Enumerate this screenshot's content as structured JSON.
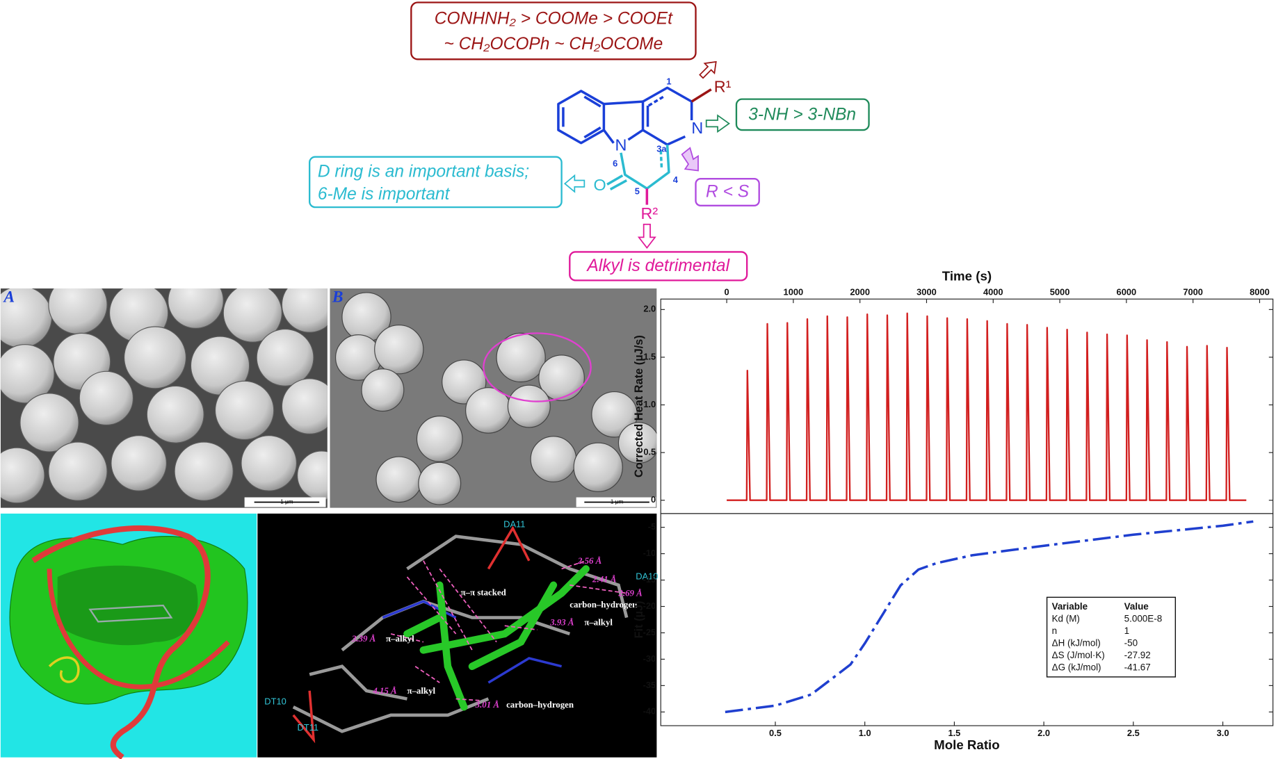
{
  "sar": {
    "r1_box": [
      "CONHNH₂ > COOMe > COOEt",
      "~ CH₂OCOPh ~ CH₂OCOMe"
    ],
    "n_box": "3-NH > 3-NBn",
    "d_box": [
      "D ring is an important basis;",
      "6-Me is important"
    ],
    "stereo_box": "R < S",
    "r2_box": "Alkyl is detrimental",
    "atoms": {
      "r1": "R¹",
      "r2": "R²",
      "n_ring": "N",
      "n_indole": "N",
      "o": "O"
    },
    "positions": {
      "p1": "1",
      "p3a": "3a",
      "p4": "4",
      "p5": "5",
      "p6": "6"
    }
  },
  "panels": {
    "a_label": "A",
    "b_label": "B",
    "scale_bar": "1 μm"
  },
  "docking": {
    "residues": [
      "DA11",
      "DA10",
      "DT10",
      "DT11"
    ],
    "interactions": [
      {
        "distance": "2.56 Å"
      },
      {
        "distance": "2.41 Å"
      },
      {
        "distance": "2.69 Å"
      },
      {
        "type": "π–π stacked"
      },
      {
        "type": "carbon–hydrogen"
      },
      {
        "distance": "3.93 Å",
        "type": "π–alkyl"
      },
      {
        "distance": "3.39 Å",
        "type": "π–alkyl"
      },
      {
        "distance": "4.15 Å",
        "type": "π–alkyl"
      },
      {
        "distance": "3.01 Å",
        "type": "carbon–hydrogen"
      }
    ]
  },
  "chart_data": [
    {
      "type": "line",
      "xlabel": "Time (s)",
      "ylabel": "Corrected Heat Rate (µJ/s)",
      "xaxis": "top",
      "color": "#d21f1f",
      "linestyle": "solid",
      "xlim": [
        -990,
        8200
      ],
      "ylim": [
        -0.14,
        2.11
      ],
      "xticks": [
        0,
        1000,
        2000,
        3000,
        4000,
        5000,
        6000,
        7000,
        8000
      ],
      "yticks": [
        0,
        0.5,
        {
          "value": 1,
          "label": "1.0"
        },
        1.5,
        {
          "value": 2,
          "label": "2.0"
        }
      ],
      "x": [
        0,
        300,
        310,
        350,
        600,
        610,
        650,
        900,
        910,
        950,
        1200,
        1210,
        1250,
        1500,
        1510,
        1550,
        1800,
        1810,
        1850,
        2100,
        2110,
        2150,
        2400,
        2410,
        2450,
        2700,
        2710,
        2750,
        3000,
        3010,
        3050,
        3300,
        3310,
        3350,
        3600,
        3610,
        3650,
        3900,
        3910,
        3950,
        4200,
        4210,
        4250,
        4500,
        4510,
        4550,
        4800,
        4810,
        4850,
        5100,
        5110,
        5150,
        5400,
        5410,
        5450,
        5700,
        5710,
        5750,
        6000,
        6010,
        6050,
        6300,
        6310,
        6350,
        6600,
        6610,
        6650,
        6900,
        6910,
        6950,
        7200,
        7210,
        7250,
        7500,
        7510,
        7550,
        7800
      ],
      "values": [
        0,
        0,
        1.36,
        0,
        0,
        1.85,
        0,
        0,
        1.86,
        0,
        0,
        1.9,
        0,
        0,
        1.93,
        0,
        0,
        1.92,
        0,
        0,
        1.95,
        0,
        0,
        1.94,
        0,
        0,
        1.96,
        0,
        0,
        1.93,
        0,
        0,
        1.91,
        0,
        0,
        1.9,
        0,
        0,
        1.88,
        0,
        0,
        1.85,
        0,
        0,
        1.84,
        0,
        0,
        1.81,
        0,
        0,
        1.79,
        0,
        0,
        1.76,
        0,
        0,
        1.74,
        0,
        0,
        1.73,
        0,
        0,
        1.68,
        0,
        0,
        1.66,
        0,
        0,
        1.61,
        0,
        0,
        1.62,
        0,
        0,
        1.6,
        0,
        0
      ]
    },
    {
      "type": "line",
      "xlabel": "Mole Ratio",
      "ylabel": "Fit (µJ)",
      "xaxis": "bottom",
      "color": "#1f3fcf",
      "linestyle": "dashed",
      "xlim": [
        -0.14,
        3.28
      ],
      "ylim": [
        -42.6,
        -2.4
      ],
      "xticks": [
        0.5,
        {
          "value": 1,
          "label": "1.0"
        },
        1.5,
        {
          "value": 2,
          "label": "2.0"
        },
        2.5,
        {
          "value": 3,
          "label": "3.0"
        }
      ],
      "yticks": [
        -5,
        -10,
        -15,
        -20,
        -25,
        -30,
        -35,
        -40
      ],
      "x": [
        0.22,
        0.5,
        0.7,
        0.92,
        1.0,
        1.1,
        1.2,
        1.3,
        1.4,
        1.6,
        1.8,
        2.0,
        2.5,
        3.0,
        3.17
      ],
      "values": [
        -40,
        -38.8,
        -36.7,
        -31,
        -27,
        -21.5,
        -16,
        -13,
        -11.8,
        -10.3,
        -9.4,
        -8.5,
        -6.4,
        -4.7,
        -3.9
      ],
      "table": {
        "header": [
          "Variable",
          "Value"
        ],
        "rows": [
          [
            "Kd (M)",
            "5.000E-8"
          ],
          [
            "n",
            "1"
          ],
          [
            "ΔH (kJ/mol)",
            "-50"
          ],
          [
            "ΔS (J/mol·K)",
            "-27.92"
          ],
          [
            "ΔG (kJ/mol)",
            "-41.67"
          ]
        ]
      }
    }
  ]
}
